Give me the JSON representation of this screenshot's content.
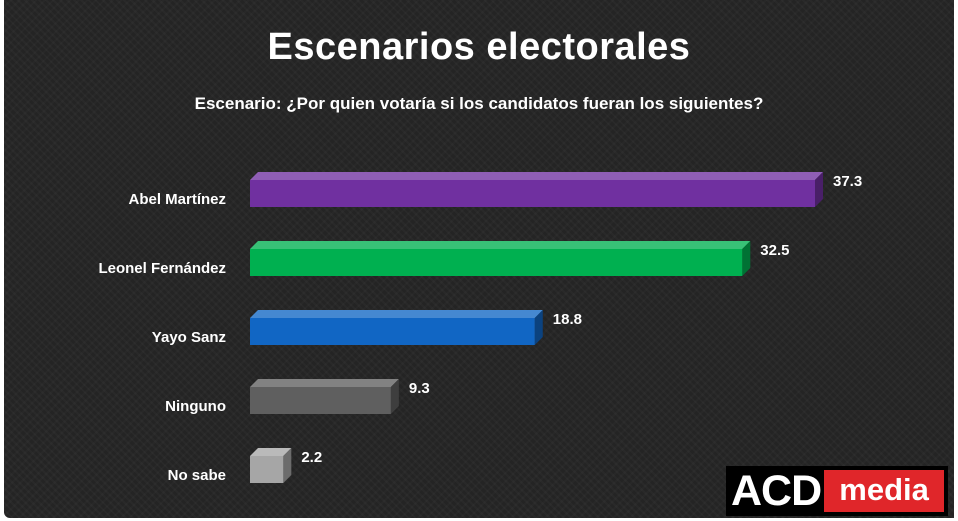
{
  "chart_data": {
    "type": "bar",
    "orientation": "horizontal",
    "title": "Escenarios electorales",
    "subtitle": "Escenario: ¿Por quien votaría si los candidatos fueran los siguientes?",
    "categories": [
      "Abel Martínez",
      "Leonel Fernández",
      "Yayo Sanz",
      "Ninguno",
      "No sabe"
    ],
    "values": [
      37.3,
      32.5,
      18.8,
      9.3,
      2.2
    ],
    "value_labels": [
      "37.3",
      "32.5",
      "18.8",
      "9.3",
      "2.2"
    ],
    "colors": [
      "#7030a0",
      "#00b050",
      "#1166c4",
      "#5f5f5f",
      "#a6a6a6"
    ],
    "xlim": [
      0,
      37.3
    ],
    "grid": false,
    "legend": "none"
  },
  "logo": {
    "left": "ACD",
    "right": "media"
  }
}
